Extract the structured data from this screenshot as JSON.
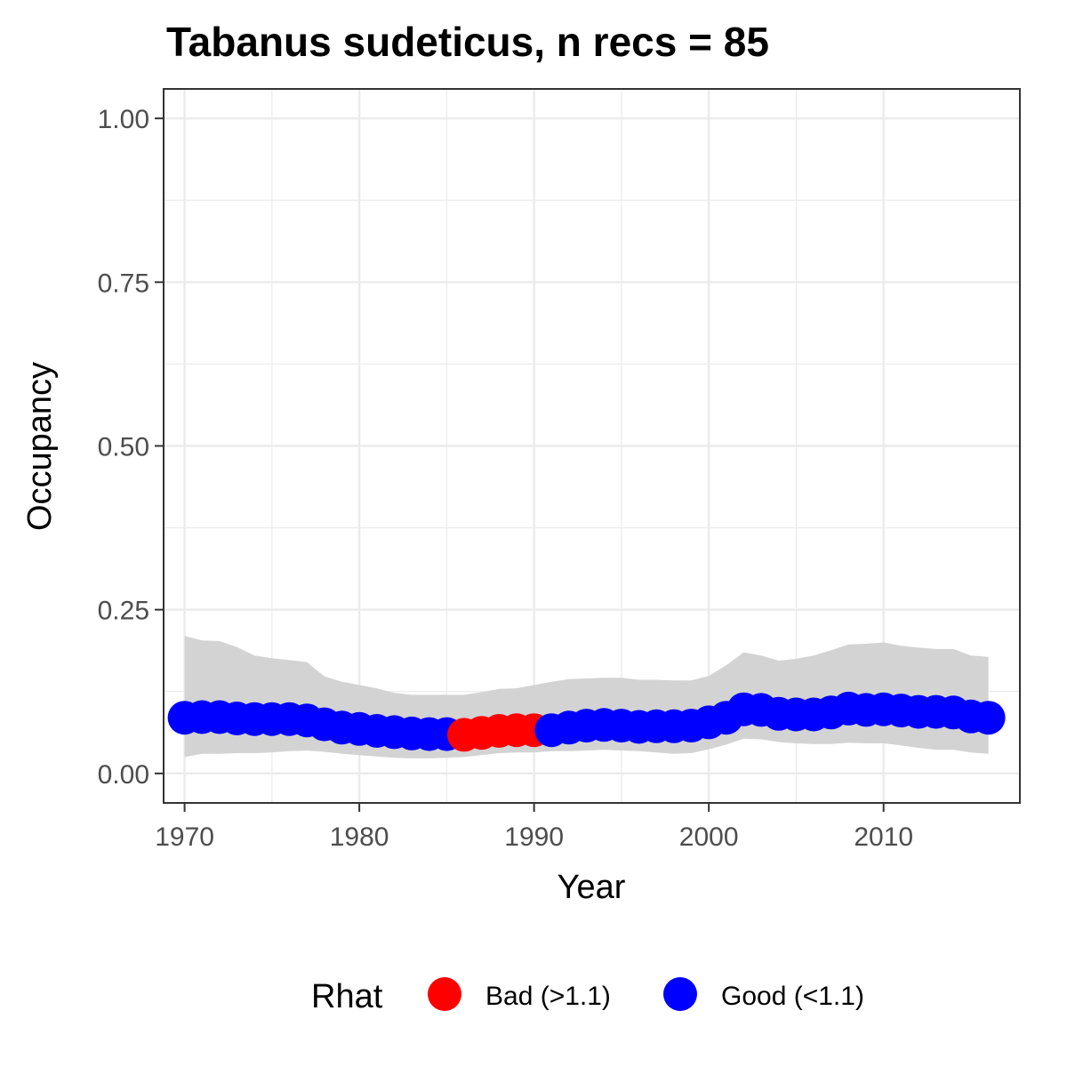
{
  "chart_data": {
    "type": "scatter",
    "title": "Tabanus sudeticus, n recs = 85",
    "xlabel": "Year",
    "ylabel": "Occupancy",
    "xlim": [
      1968.8,
      2017.8
    ],
    "ylim": [
      -0.045,
      1.045
    ],
    "x_ticks": [
      1970,
      1980,
      1990,
      2000,
      2010
    ],
    "x_tick_labels": [
      "1970",
      "1980",
      "1990",
      "2000",
      "2010"
    ],
    "y_ticks": [
      0.0,
      0.25,
      0.5,
      0.75,
      1.0
    ],
    "y_tick_labels": [
      "0.00",
      "0.25",
      "0.50",
      "0.75",
      "1.00"
    ],
    "grid": true,
    "legend": {
      "title": "Rhat",
      "position": "bottom",
      "entries": [
        {
          "label": "Bad (>1.1)",
          "color": "#ff0000"
        },
        {
          "label": "Good (<1.1)",
          "color": "#0000ff"
        }
      ]
    },
    "colors": {
      "Bad": "#ff0000",
      "Good": "#0000ff",
      "ribbon": "#d3d3d3"
    },
    "x": [
      1970,
      1971,
      1972,
      1973,
      1974,
      1975,
      1976,
      1977,
      1978,
      1979,
      1980,
      1981,
      1982,
      1983,
      1984,
      1985,
      1986,
      1987,
      1988,
      1989,
      1990,
      1991,
      1992,
      1993,
      1994,
      1995,
      1996,
      1997,
      1998,
      1999,
      2000,
      2001,
      2002,
      2003,
      2004,
      2005,
      2006,
      2007,
      2008,
      2009,
      2010,
      2011,
      2012,
      2013,
      2014,
      2015,
      2016
    ],
    "occupancy": [
      0.085,
      0.086,
      0.086,
      0.084,
      0.083,
      0.083,
      0.083,
      0.081,
      0.075,
      0.07,
      0.068,
      0.065,
      0.063,
      0.061,
      0.06,
      0.06,
      0.059,
      0.062,
      0.065,
      0.066,
      0.066,
      0.066,
      0.07,
      0.073,
      0.074,
      0.073,
      0.071,
      0.072,
      0.072,
      0.073,
      0.078,
      0.085,
      0.098,
      0.097,
      0.091,
      0.09,
      0.09,
      0.093,
      0.099,
      0.097,
      0.098,
      0.096,
      0.094,
      0.094,
      0.093,
      0.087,
      0.085
    ],
    "rhat": [
      "Good",
      "Good",
      "Good",
      "Good",
      "Good",
      "Good",
      "Good",
      "Good",
      "Good",
      "Good",
      "Good",
      "Good",
      "Good",
      "Good",
      "Good",
      "Good",
      "Bad",
      "Bad",
      "Bad",
      "Bad",
      "Bad",
      "Good",
      "Good",
      "Good",
      "Good",
      "Good",
      "Good",
      "Good",
      "Good",
      "Good",
      "Good",
      "Good",
      "Good",
      "Good",
      "Good",
      "Good",
      "Good",
      "Good",
      "Good",
      "Good",
      "Good",
      "Good",
      "Good",
      "Good",
      "Good",
      "Good",
      "Good"
    ],
    "lower_ci": [
      0.025,
      0.03,
      0.03,
      0.031,
      0.031,
      0.032,
      0.034,
      0.035,
      0.033,
      0.03,
      0.028,
      0.026,
      0.024,
      0.023,
      0.023,
      0.024,
      0.025,
      0.028,
      0.031,
      0.032,
      0.032,
      0.034,
      0.034,
      0.035,
      0.036,
      0.035,
      0.034,
      0.032,
      0.03,
      0.031,
      0.037,
      0.044,
      0.053,
      0.052,
      0.048,
      0.046,
      0.045,
      0.045,
      0.047,
      0.046,
      0.046,
      0.043,
      0.039,
      0.036,
      0.036,
      0.032,
      0.03
    ],
    "upper_ci": [
      0.21,
      0.203,
      0.202,
      0.193,
      0.18,
      0.176,
      0.173,
      0.17,
      0.148,
      0.14,
      0.135,
      0.13,
      0.123,
      0.12,
      0.12,
      0.12,
      0.12,
      0.124,
      0.129,
      0.13,
      0.135,
      0.14,
      0.144,
      0.145,
      0.146,
      0.146,
      0.143,
      0.143,
      0.142,
      0.142,
      0.149,
      0.165,
      0.185,
      0.18,
      0.172,
      0.175,
      0.18,
      0.188,
      0.197,
      0.198,
      0.2,
      0.195,
      0.192,
      0.19,
      0.19,
      0.18,
      0.178
    ]
  }
}
